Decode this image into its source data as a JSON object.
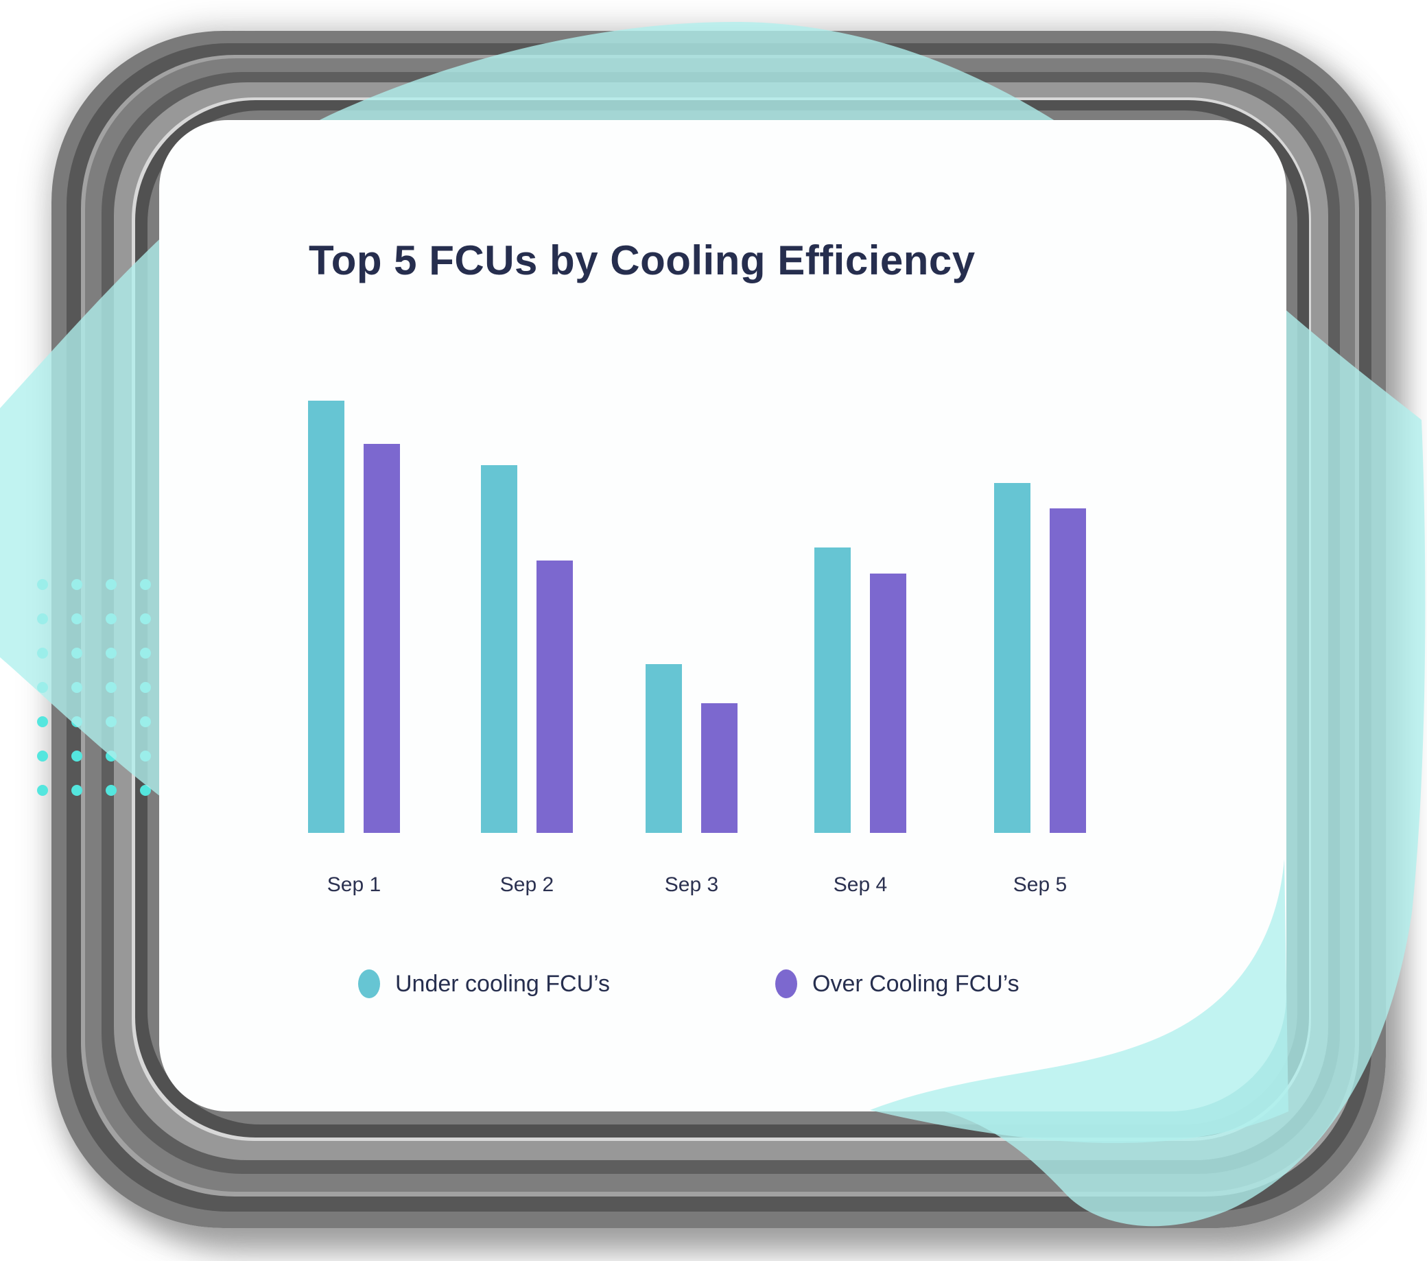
{
  "page": {
    "background": "#ffffff"
  },
  "card": {
    "background": "#fdfefe",
    "title_color": "#262e4e"
  },
  "chart_data": {
    "type": "bar",
    "title": "Top 5 FCUs by Cooling Efficiency",
    "categories": [
      "Sep 1",
      "Sep 2",
      "Sep 3",
      "Sep 4",
      "Sep 5"
    ],
    "series": [
      {
        "name": "Under cooling FCU’s",
        "color": "#66c5d3",
        "values": [
          100,
          85,
          39,
          66,
          81
        ]
      },
      {
        "name": "Over Cooling FCU’s",
        "color": "#7c68cf",
        "values": [
          90,
          63,
          30,
          60,
          75
        ]
      }
    ],
    "xlabel": "",
    "ylabel": "",
    "ylim": [
      0,
      100
    ],
    "grid": false,
    "y_axis_visible": false,
    "legend_position": "bottom",
    "label_color": "#2b3150",
    "value_scale_note": "no y-axis shown; values are bar heights relative to tallest bar = 100"
  },
  "decor": {
    "blob_color": "#b0f0ed",
    "blob_opacity": 0.78,
    "dot_grid_color": "#54e6de",
    "frame_stripe_colors": [
      "#7a7a7a",
      "#575757",
      "#a2a2a2",
      "#7e7e7e",
      "#5e5e5e",
      "#989898",
      "#d8d8d8",
      "#515151",
      "#7d7d7d"
    ]
  }
}
